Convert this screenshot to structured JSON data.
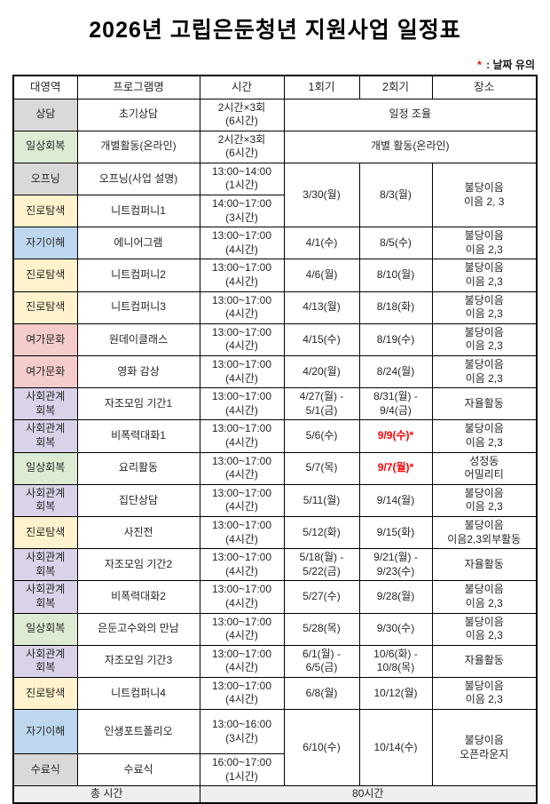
{
  "title": "2026년  고립은둔청년  지원사업  일정표",
  "note": {
    "marker": "*",
    "text": " : 날짜  유의"
  },
  "colors": {
    "gray": "#d9d9d9",
    "green": "#ddebd3",
    "yellow": "#fff2cc",
    "blue": "#bdd7ee",
    "pink": "#f4cccc",
    "purple": "#d9d2e9",
    "footer_bg": "#efefef",
    "highlight_red": "#ff0000"
  },
  "table": {
    "headers": [
      "대영역",
      "프로그램명",
      "시간",
      "1회기",
      "2회기",
      "장소"
    ],
    "rows": [
      {
        "category": [
          "상담"
        ],
        "color": "gray",
        "program": "초기상담",
        "time": [
          "2시간×3회",
          "(6시간)"
        ],
        "merge": "span3",
        "span_text": "일정 조율"
      },
      {
        "category": [
          "일상회복"
        ],
        "color": "green",
        "program": "개별활동(온라인)",
        "time": [
          "2시간×3회",
          "(6시간)"
        ],
        "merge": "span3",
        "span_text": "개별 활동(온라인)"
      },
      {
        "category": [
          "오프닝"
        ],
        "color": "gray",
        "program": "오프닝(사업 설명)",
        "time": [
          "13:00~14:00",
          "(1시간)"
        ],
        "merge": "rowspan2",
        "session1": [
          "3/30(월)"
        ],
        "session2": [
          "8/3(월)"
        ],
        "place": [
          "불당이음",
          "이음 2, 3"
        ]
      },
      {
        "category": [
          "진로탐색"
        ],
        "color": "yellow",
        "program": "니트컴퍼니1",
        "time": [
          "14:00~17:00",
          "(3시간)"
        ],
        "merge": "continued"
      },
      {
        "category": [
          "자기이해"
        ],
        "color": "blue",
        "program": "에니어그램",
        "time": [
          "13:00~17:00",
          "(4시간)"
        ],
        "session1": [
          "4/1(수)"
        ],
        "session2": [
          "8/5(수)"
        ],
        "place": [
          "불당이음",
          "이음 2,3"
        ]
      },
      {
        "category": [
          "진로탐색"
        ],
        "color": "yellow",
        "program": "니트컴퍼니2",
        "time": [
          "13:00~17:00",
          "(4시간)"
        ],
        "session1": [
          "4/6(월)"
        ],
        "session2": [
          "8/10(월)"
        ],
        "place": [
          "불당이음",
          "이음 2,3"
        ]
      },
      {
        "category": [
          "진로탐색"
        ],
        "color": "yellow",
        "program": "니트컴퍼니3",
        "time": [
          "13:00~17:00",
          "(4시간)"
        ],
        "session1": [
          "4/13(월)"
        ],
        "session2": [
          "8/18(화)"
        ],
        "place": [
          "불당이음",
          "이음 2,3"
        ]
      },
      {
        "category": [
          "여가문화"
        ],
        "color": "pink",
        "program": "원데이클래스",
        "time": [
          "13:00~17:00",
          "(4시간)"
        ],
        "session1": [
          "4/15(수)"
        ],
        "session2": [
          "8/19(수)"
        ],
        "place": [
          "불당이음",
          "이음 2,3"
        ]
      },
      {
        "category": [
          "여가문화"
        ],
        "color": "pink",
        "program": "영화 감상",
        "time": [
          "13:00~17:00",
          "(4시간)"
        ],
        "session1": [
          "4/20(월)"
        ],
        "session2": [
          "8/24(월)"
        ],
        "place": [
          "불당이음",
          "이음 2,3"
        ]
      },
      {
        "category": [
          "사회관계",
          "회복"
        ],
        "color": "purple",
        "program": "자조모임 기간1",
        "time": [
          "13:00~17:00",
          "(4시간)"
        ],
        "session1": [
          "4/27(월) -",
          "5/1(금)"
        ],
        "session2": [
          "8/31(월) -",
          "9/4(금)"
        ],
        "place": [
          "자율활동"
        ]
      },
      {
        "category": [
          "사회관계",
          "회복"
        ],
        "color": "purple",
        "program": "비폭력대화1",
        "time": [
          "13:00~17:00",
          "(4시간)"
        ],
        "session1": [
          "5/6(수)"
        ],
        "session2": [
          "9/9(수)*"
        ],
        "session2_red": true,
        "place": [
          "불당이음",
          "이음 2,3"
        ]
      },
      {
        "category": [
          "일상회복"
        ],
        "color": "green",
        "program": "요리활동",
        "time": [
          "13:00~17:00",
          "(4시간)"
        ],
        "session1": [
          "5/7(목)"
        ],
        "session2": [
          "9/7(월)*"
        ],
        "session2_red": true,
        "place": [
          "성정동",
          "어밀리티"
        ]
      },
      {
        "category": [
          "사회관계",
          "회복"
        ],
        "color": "purple",
        "program": "집단상담",
        "time": [
          "13:00~17:00",
          "(4시간)"
        ],
        "session1": [
          "5/11(월)"
        ],
        "session2": [
          "9/14(월)"
        ],
        "place": [
          "불당이음",
          "이음 2,3"
        ]
      },
      {
        "category": [
          "진로탐색"
        ],
        "color": "yellow",
        "program": "사진전",
        "time": [
          "13:00~17:00",
          "(4시간)"
        ],
        "session1": [
          "5/12(화)"
        ],
        "session2": [
          "9/15(화)"
        ],
        "place": [
          "불당이음",
          "이음2,3외부활동"
        ]
      },
      {
        "category": [
          "사회관계",
          "회복"
        ],
        "color": "purple",
        "program": "자조모임 기간2",
        "time": [
          "13:00~17:00",
          "(4시간)"
        ],
        "session1": [
          "5/18(월) -",
          "5/22(금)"
        ],
        "session2": [
          "9/21(월) -",
          "9/23(수)"
        ],
        "place": [
          "자율활동"
        ]
      },
      {
        "category": [
          "사회관계",
          "회복"
        ],
        "color": "purple",
        "program": "비폭력대화2",
        "time": [
          "13:00~17:00",
          "(4시간)"
        ],
        "session1": [
          "5/27(수)"
        ],
        "session2": [
          "9/28(월)"
        ],
        "place": [
          "불당이음",
          "이음 2,3"
        ]
      },
      {
        "category": [
          "일상회복"
        ],
        "color": "green",
        "program": "은둔고수와의 만남",
        "time": [
          "13:00~17:00",
          "(4시간)"
        ],
        "session1": [
          "5/28(목)"
        ],
        "session2": [
          "9/30(수)"
        ],
        "place": [
          "불당이음",
          "이음 2,3"
        ]
      },
      {
        "category": [
          "사회관계",
          "회복"
        ],
        "color": "purple",
        "program": "자조모임 기간3",
        "time": [
          "13:00~17:00",
          "(4시간)"
        ],
        "session1": [
          "6/1(월) -",
          "6/5(금)"
        ],
        "session2": [
          "10/6(화) -",
          "10/8(목)"
        ],
        "place": [
          "자율활동"
        ]
      },
      {
        "category": [
          "진로탐색"
        ],
        "color": "yellow",
        "program": "니트컴퍼니4",
        "time": [
          "13:00~17:00",
          "(4시간)"
        ],
        "session1": [
          "6/8(월)"
        ],
        "session2": [
          "10/12(월)"
        ],
        "place": [
          "불당이음",
          "이음 2,3"
        ]
      },
      {
        "category": [
          "자기이해"
        ],
        "color": "blue",
        "program": "인생포트폴리오",
        "time": [
          "13:00~16:00",
          "(3시간)"
        ],
        "merge": "rowspan2",
        "session1": [
          "6/10(수)"
        ],
        "session2": [
          "10/14(수)"
        ],
        "place": [
          "불당이음",
          "오픈라운지"
        ]
      },
      {
        "category": [
          "수료식"
        ],
        "color": "gray",
        "program": "수료식",
        "time": [
          "16:00~17:00",
          "(1시간)"
        ],
        "merge": "continued"
      }
    ],
    "footer": {
      "label": "총 시간",
      "value": "80시간"
    }
  }
}
